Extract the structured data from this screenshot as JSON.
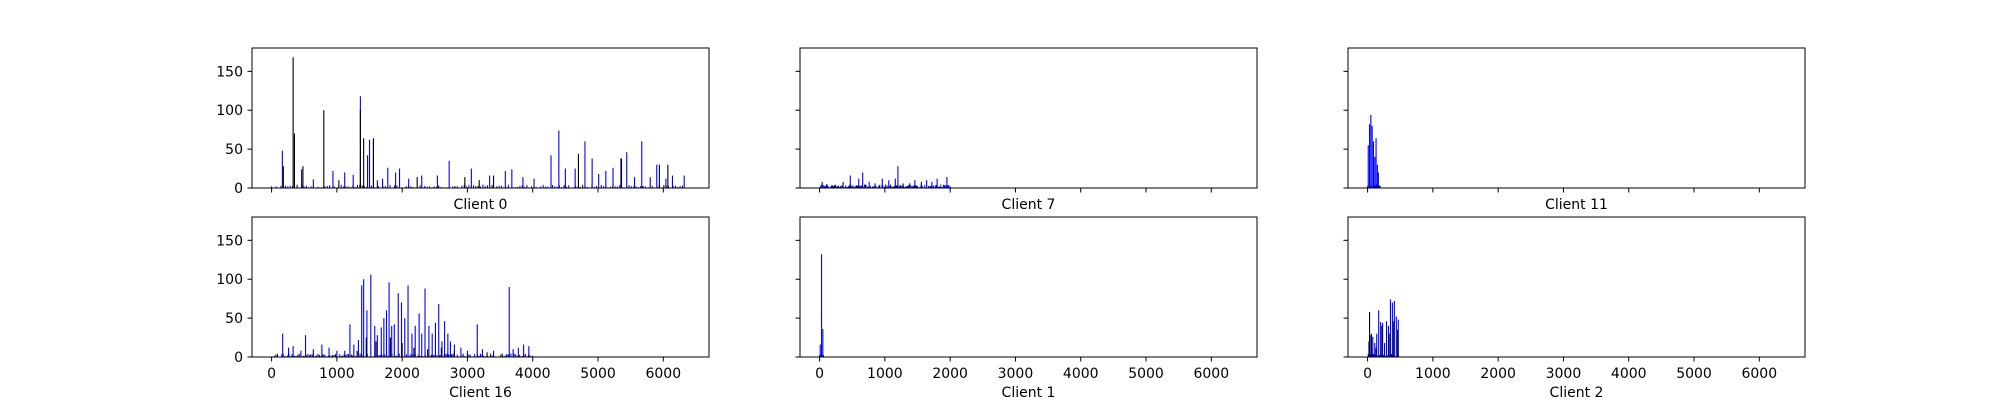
{
  "colors": {
    "blue_bars": "#0000ff",
    "dark_bars": "#000000",
    "axes": "#000000",
    "background": "#ffffff"
  },
  "chart_data": [
    {
      "type": "bar",
      "title": "Client 0",
      "xlabel": "Client 0",
      "ylabel": "",
      "xlim": [
        -300,
        6700
      ],
      "ylim": [
        0,
        180
      ],
      "x_ticks": [
        0,
        1000,
        2000,
        3000,
        4000,
        5000,
        6000
      ],
      "x_tick_labels_shown": false,
      "y_ticks": [
        0,
        50,
        100,
        150
      ],
      "y_tick_labels_shown": true,
      "x_range": [
        0,
        6400
      ],
      "bars": {
        "blue": [
          [
            165,
            48
          ],
          [
            460,
            24
          ],
          [
            640,
            11
          ],
          [
            940,
            22
          ],
          [
            1120,
            20
          ],
          [
            1250,
            17
          ],
          [
            1360,
            118
          ],
          [
            1470,
            42
          ],
          [
            1500,
            62
          ],
          [
            1560,
            62
          ],
          [
            1620,
            10
          ],
          [
            1700,
            12
          ],
          [
            1780,
            26
          ],
          [
            1900,
            20
          ],
          [
            1960,
            25
          ],
          [
            2100,
            12
          ],
          [
            2300,
            16
          ],
          [
            2540,
            16
          ],
          [
            2720,
            35
          ],
          [
            3060,
            25
          ],
          [
            3340,
            16
          ],
          [
            3580,
            22
          ],
          [
            3680,
            24
          ],
          [
            3850,
            14
          ],
          [
            4020,
            12
          ],
          [
            4280,
            42
          ],
          [
            4400,
            74
          ],
          [
            4500,
            25
          ],
          [
            4650,
            25
          ],
          [
            4800,
            60
          ],
          [
            4910,
            38
          ],
          [
            5010,
            18
          ],
          [
            5120,
            22
          ],
          [
            5230,
            26
          ],
          [
            5350,
            38
          ],
          [
            5440,
            46
          ],
          [
            5560,
            14
          ],
          [
            5670,
            60
          ],
          [
            5800,
            14
          ],
          [
            5900,
            30
          ],
          [
            6040,
            12
          ],
          [
            6140,
            16
          ],
          [
            6320,
            16
          ]
        ],
        "dark": [
          [
            180,
            28
          ],
          [
            330,
            168
          ],
          [
            350,
            70
          ],
          [
            480,
            28
          ],
          [
            800,
            100
          ],
          [
            1030,
            10
          ],
          [
            1360,
            100
          ],
          [
            1410,
            64
          ],
          [
            1560,
            64
          ],
          [
            2230,
            14
          ],
          [
            2960,
            14
          ],
          [
            3180,
            10
          ],
          [
            3400,
            16
          ],
          [
            4700,
            44
          ],
          [
            5360,
            38
          ],
          [
            5940,
            30
          ],
          [
            6070,
            30
          ]
        ]
      }
    },
    {
      "type": "bar",
      "title": "Client 7",
      "xlabel": "Client 7",
      "ylabel": "",
      "xlim": [
        -300,
        6700
      ],
      "ylim": [
        0,
        180
      ],
      "x_ticks": [
        0,
        1000,
        2000,
        3000,
        4000,
        5000,
        6000
      ],
      "x_tick_labels_shown": false,
      "y_ticks": [
        0,
        50,
        100,
        150
      ],
      "y_tick_labels_shown": false,
      "x_range": [
        0,
        2000
      ],
      "bars": {
        "blue": [
          [
            40,
            8
          ],
          [
            110,
            5
          ],
          [
            190,
            4
          ],
          [
            280,
            3
          ],
          [
            360,
            8
          ],
          [
            470,
            16
          ],
          [
            600,
            12
          ],
          [
            660,
            20
          ],
          [
            760,
            8
          ],
          [
            850,
            6
          ],
          [
            960,
            12
          ],
          [
            1060,
            10
          ],
          [
            1160,
            12
          ],
          [
            1200,
            28
          ],
          [
            1280,
            6
          ],
          [
            1380,
            6
          ],
          [
            1460,
            10
          ],
          [
            1560,
            8
          ],
          [
            1640,
            10
          ],
          [
            1720,
            8
          ],
          [
            1800,
            12
          ],
          [
            1900,
            4
          ],
          [
            1950,
            14
          ]
        ],
        "dark": []
      }
    },
    {
      "type": "bar",
      "title": "Client 11",
      "xlabel": "Client 11",
      "ylabel": "",
      "xlim": [
        -300,
        6700
      ],
      "ylim": [
        0,
        180
      ],
      "x_ticks": [
        0,
        1000,
        2000,
        3000,
        4000,
        5000,
        6000
      ],
      "x_tick_labels_shown": false,
      "y_ticks": [
        0,
        50,
        100,
        150
      ],
      "y_tick_labels_shown": false,
      "x_range": [
        0,
        200
      ],
      "bars": {
        "blue": [
          [
            10,
            55
          ],
          [
            30,
            82
          ],
          [
            50,
            94
          ],
          [
            70,
            80
          ],
          [
            90,
            60
          ],
          [
            110,
            40
          ],
          [
            130,
            64
          ],
          [
            150,
            30
          ],
          [
            165,
            20
          ]
        ],
        "dark": []
      }
    },
    {
      "type": "bar",
      "title": "Client 16",
      "xlabel": "Client 16",
      "ylabel": "",
      "xlim": [
        -300,
        6700
      ],
      "ylim": [
        0,
        180
      ],
      "x_ticks": [
        0,
        1000,
        2000,
        3000,
        4000,
        5000,
        6000
      ],
      "x_tick_labels_shown": true,
      "y_ticks": [
        0,
        50,
        100,
        150
      ],
      "y_tick_labels_shown": true,
      "x_range": [
        0,
        4000
      ],
      "bars": {
        "blue": [
          [
            170,
            30
          ],
          [
            260,
            12
          ],
          [
            330,
            14
          ],
          [
            450,
            8
          ],
          [
            520,
            28
          ],
          [
            640,
            10
          ],
          [
            770,
            16
          ],
          [
            880,
            12
          ],
          [
            1000,
            8
          ],
          [
            1120,
            8
          ],
          [
            1200,
            42
          ],
          [
            1260,
            16
          ],
          [
            1330,
            22
          ],
          [
            1380,
            92
          ],
          [
            1410,
            100
          ],
          [
            1460,
            60
          ],
          [
            1520,
            106
          ],
          [
            1580,
            40
          ],
          [
            1620,
            28
          ],
          [
            1680,
            38
          ],
          [
            1720,
            50
          ],
          [
            1760,
            60
          ],
          [
            1800,
            96
          ],
          [
            1840,
            40
          ],
          [
            1880,
            42
          ],
          [
            1940,
            82
          ],
          [
            1990,
            70
          ],
          [
            2040,
            50
          ],
          [
            2090,
            92
          ],
          [
            2150,
            30
          ],
          [
            2200,
            40
          ],
          [
            2260,
            56
          ],
          [
            2300,
            30
          ],
          [
            2350,
            88
          ],
          [
            2410,
            40
          ],
          [
            2460,
            30
          ],
          [
            2510,
            44
          ],
          [
            2560,
            68
          ],
          [
            2610,
            20
          ],
          [
            2650,
            46
          ],
          [
            2700,
            30
          ],
          [
            2740,
            20
          ],
          [
            2800,
            16
          ],
          [
            2900,
            12
          ],
          [
            3000,
            8
          ],
          [
            3150,
            42
          ],
          [
            3230,
            10
          ],
          [
            3400,
            8
          ],
          [
            3640,
            90
          ],
          [
            3700,
            10
          ],
          [
            3780,
            12
          ],
          [
            3860,
            16
          ],
          [
            3940,
            14
          ]
        ],
        "dark": [
          [
            1310,
            8
          ],
          [
            1450,
            25
          ],
          [
            1600,
            20
          ],
          [
            1820,
            25
          ],
          [
            2000,
            18
          ],
          [
            2180,
            12
          ],
          [
            2390,
            10
          ],
          [
            2600,
            12
          ],
          [
            2800,
            8
          ],
          [
            3300,
            6
          ]
        ]
      }
    },
    {
      "type": "bar",
      "title": "Client 1",
      "xlabel": "Client 1",
      "ylabel": "",
      "xlim": [
        -300,
        6700
      ],
      "ylim": [
        0,
        180
      ],
      "x_ticks": [
        0,
        1000,
        2000,
        3000,
        4000,
        5000,
        6000
      ],
      "x_tick_labels_shown": true,
      "y_ticks": [
        0,
        50,
        100,
        150
      ],
      "y_tick_labels_shown": false,
      "x_range": [
        0,
        60
      ],
      "bars": {
        "blue": [
          [
            10,
            16
          ],
          [
            30,
            132
          ],
          [
            50,
            36
          ]
        ],
        "dark": []
      }
    },
    {
      "type": "bar",
      "title": "Client 2",
      "xlabel": "Client 2",
      "ylabel": "",
      "xlim": [
        -300,
        6700
      ],
      "ylim": [
        0,
        180
      ],
      "x_ticks": [
        0,
        1000,
        2000,
        3000,
        4000,
        5000,
        6000
      ],
      "x_tick_labels_shown": true,
      "y_ticks": [
        0,
        50,
        100,
        150
      ],
      "y_tick_labels_shown": false,
      "x_range": [
        0,
        480
      ],
      "bars": {
        "blue": [
          [
            20,
            20
          ],
          [
            50,
            28
          ],
          [
            80,
            26
          ],
          [
            110,
            18
          ],
          [
            140,
            30
          ],
          [
            170,
            60
          ],
          [
            200,
            45
          ],
          [
            230,
            44
          ],
          [
            260,
            18
          ],
          [
            290,
            46
          ],
          [
            320,
            40
          ],
          [
            350,
            74
          ],
          [
            380,
            70
          ],
          [
            410,
            72
          ],
          [
            440,
            52
          ],
          [
            470,
            48
          ]
        ],
        "dark": [
          [
            30,
            58
          ],
          [
            60,
            30
          ],
          [
            130,
            12
          ],
          [
            220,
            40
          ],
          [
            330,
            30
          ],
          [
            400,
            46
          ],
          [
            460,
            35
          ]
        ]
      }
    }
  ]
}
